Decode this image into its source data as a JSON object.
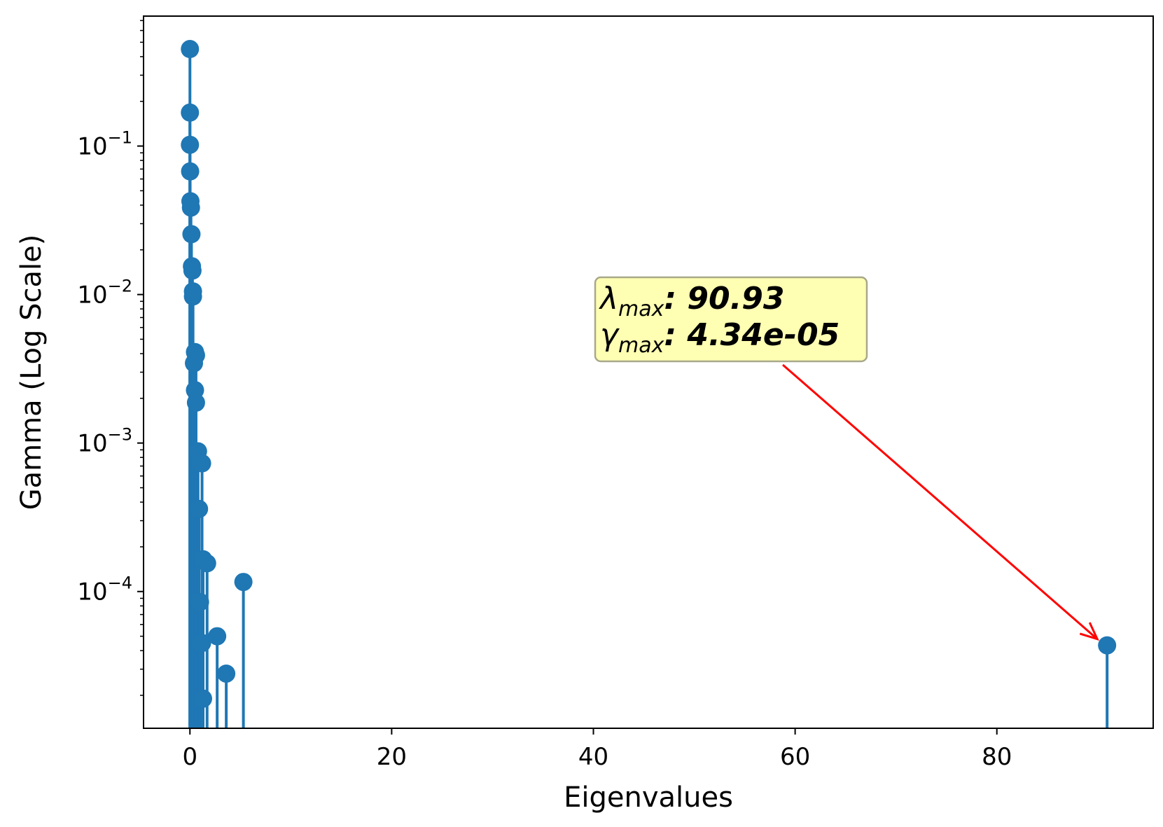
{
  "chart_data": {
    "type": "stem",
    "xlabel": "Eigenvalues",
    "ylabel": "Gamma (Log Scale)",
    "yscale": "log",
    "xlim": [
      -4.6,
      95.5
    ],
    "ylim": [
      1.2e-05,
      0.75
    ],
    "xticks": [
      {
        "value": 0,
        "label": "0"
      },
      {
        "value": 20,
        "label": "20"
      },
      {
        "value": 40,
        "label": "40"
      },
      {
        "value": 60,
        "label": "60"
      },
      {
        "value": 80,
        "label": "80"
      }
    ],
    "yticks": [
      {
        "value": 0.1,
        "base": "10",
        "exp": "−1"
      },
      {
        "value": 0.01,
        "base": "10",
        "exp": "−2"
      },
      {
        "value": 0.001,
        "base": "10",
        "exp": "−3"
      },
      {
        "value": 0.0001,
        "base": "10",
        "exp": "−4"
      }
    ],
    "color": "#1f77b4",
    "points": [
      {
        "x": 0.0,
        "y": 0.45
      },
      {
        "x": 0.0,
        "y": 0.168
      },
      {
        "x": 0.0,
        "y": 0.102
      },
      {
        "x": 0.02,
        "y": 0.0675
      },
      {
        "x": 0.05,
        "y": 0.0425
      },
      {
        "x": 0.1,
        "y": 0.0385
      },
      {
        "x": 0.15,
        "y": 0.0255
      },
      {
        "x": 0.2,
        "y": 0.0155
      },
      {
        "x": 0.25,
        "y": 0.0145
      },
      {
        "x": 0.3,
        "y": 0.0105
      },
      {
        "x": 0.3,
        "y": 0.0097
      },
      {
        "x": 0.5,
        "y": 0.0041
      },
      {
        "x": 0.6,
        "y": 0.0039
      },
      {
        "x": 0.4,
        "y": 0.00345
      },
      {
        "x": 0.5,
        "y": 0.00227
      },
      {
        "x": 0.6,
        "y": 0.00187
      },
      {
        "x": 0.8,
        "y": 0.00088
      },
      {
        "x": 1.2,
        "y": 0.00073
      },
      {
        "x": 0.9,
        "y": 0.00036
      },
      {
        "x": 1.3,
        "y": 0.000165
      },
      {
        "x": 1.7,
        "y": 0.000155
      },
      {
        "x": 1.0,
        "y": 8.5e-05
      },
      {
        "x": 1.2,
        "y": 4.5e-05
      },
      {
        "x": 2.7,
        "y": 5e-05
      },
      {
        "x": 3.6,
        "y": 2.8e-05
      },
      {
        "x": 1.3,
        "y": 1.9e-05
      },
      {
        "x": 5.3,
        "y": 0.000116
      },
      {
        "x": 90.93,
        "y": 4.34e-05
      }
    ],
    "annotation": {
      "line1_symbol": "λ",
      "line1_sub": "max",
      "line1_value": ": 90.93",
      "line2_symbol": "γ",
      "line2_sub": "max",
      "line2_value": ": 4.34e-05",
      "target_x": 90.93,
      "target_y": 4.34e-05,
      "box_color": "#ffffb3",
      "box_border": "#a8a88a",
      "arrow_color": "#ff0000"
    }
  }
}
